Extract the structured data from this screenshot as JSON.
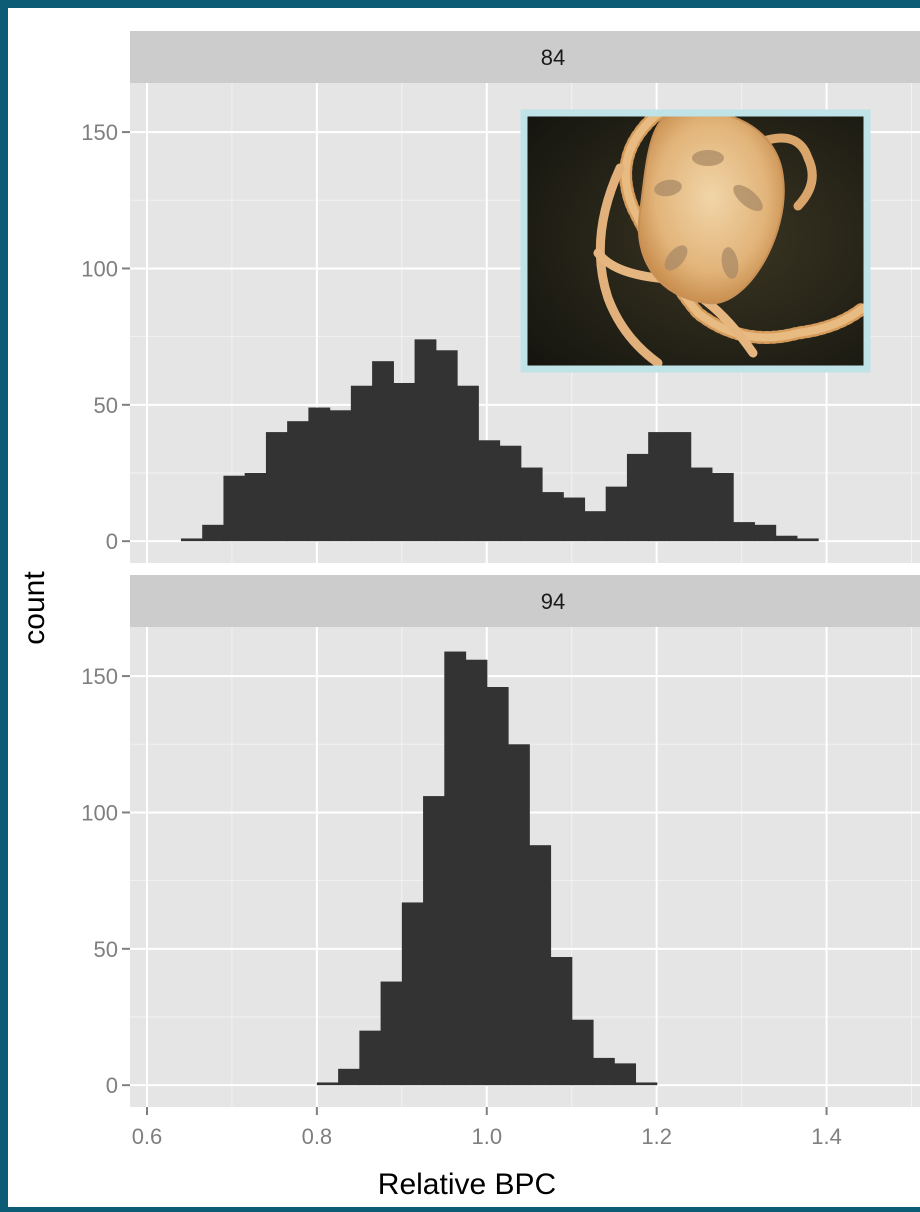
{
  "chart_data": {
    "type": "bar",
    "subtype": "faceted-histogram",
    "xlabel": "Relative BPC",
    "ylabel": "count",
    "xlim": [
      0.58,
      1.51
    ],
    "ylim": [
      -8,
      168
    ],
    "x_ticks": [
      0.6,
      0.8,
      1.0,
      1.2,
      1.4
    ],
    "x_tick_labels": [
      "0.6",
      "0.8",
      "1.0",
      "1.2",
      "1.4"
    ],
    "y_ticks": [
      0,
      50,
      100,
      150
    ],
    "y_tick_labels": [
      "0",
      "50",
      "100",
      "150"
    ],
    "bin_width": 0.025,
    "grid": true,
    "bar_color": "#333333",
    "panel_background": "#e5e5e5",
    "strip_background": "#cccccc",
    "photo_border_color": "#bfe3e6",
    "facets": [
      {
        "label": "84",
        "bin_start": 0.64,
        "counts": [
          1,
          6,
          24,
          25,
          40,
          44,
          49,
          48,
          57,
          66,
          58,
          74,
          70,
          57,
          37,
          35,
          27,
          18,
          16,
          11,
          20,
          32,
          40,
          40,
          27,
          25,
          7,
          6,
          2,
          1
        ]
      },
      {
        "label": "94",
        "bin_start": 0.8,
        "counts": [
          1,
          6,
          20,
          38,
          67,
          106,
          159,
          156,
          146,
          125,
          88,
          47,
          24,
          10,
          8,
          1
        ]
      }
    ],
    "inset_photo": {
      "facet": "84",
      "subject": "brittle star"
    }
  }
}
